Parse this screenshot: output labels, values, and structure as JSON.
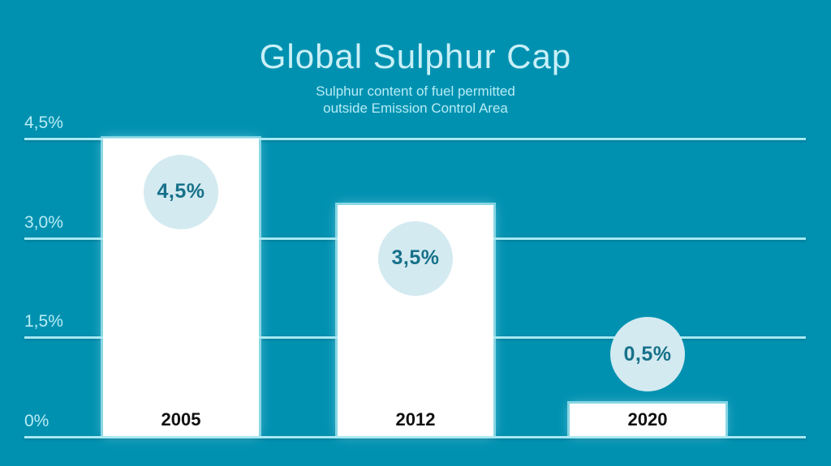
{
  "chart_data": {
    "type": "bar",
    "title": "Global Sulphur Cap",
    "subtitle_line1": "Sulphur content of fuel permitted",
    "subtitle_line2": "outside Emission Control Area",
    "categories": [
      "2005",
      "2012",
      "2020"
    ],
    "values": [
      4.5,
      3.5,
      0.5
    ],
    "value_labels": [
      "4,5%",
      "3,5%",
      "0,5%"
    ],
    "y_ticks": [
      {
        "value": 4.5,
        "label": "4,5%"
      },
      {
        "value": 3.0,
        "label": "3,0%"
      },
      {
        "value": 1.5,
        "label": "1,5%"
      },
      {
        "value": 0,
        "label": "0%"
      }
    ],
    "ylim": [
      0,
      4.5
    ],
    "grid": true,
    "legend": false,
    "colors": {
      "background": "#0091b1",
      "bar_fill": "#ffffff",
      "bar_glow": "#a9e8f2",
      "gridline": "#a5e9f3",
      "tick_label": "#b9ecf4",
      "title_text": "#c9f0f7",
      "subtitle_text": "#b6ecf4",
      "badge_fill": "#d3eaf0",
      "badge_text": "#17718a",
      "year_text": "#101010"
    }
  }
}
